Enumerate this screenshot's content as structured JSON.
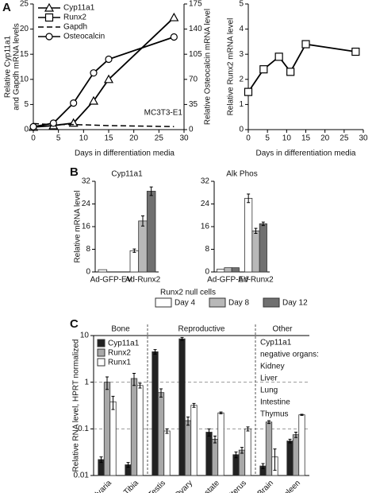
{
  "panels": [
    "A",
    "B",
    "C"
  ],
  "chart_data": [
    {
      "type": "line",
      "xlabel": "Days in differentiation media",
      "ylabel": [
        "Relative Cyp11a1",
        "and Gapdh mRNA levels"
      ],
      "y2label": "Relative Osteocalcin mRNA level",
      "annotation": "MC3T3-E1",
      "xlim": [
        0,
        30
      ],
      "xticks": [
        0,
        5,
        10,
        15,
        20,
        25,
        30
      ],
      "ylim": [
        0,
        25
      ],
      "yticks": [
        0,
        5,
        10,
        15,
        20,
        25
      ],
      "y2lim": [
        0,
        175
      ],
      "y2ticks": [
        0,
        35,
        70,
        105,
        140,
        175
      ],
      "x": [
        0,
        4,
        8,
        12,
        15,
        28
      ],
      "series": [
        {
          "name": "Cyp11a1",
          "marker": "triangle",
          "dashed": false,
          "values": [
            0.5,
            0.8,
            1.3,
            5.7,
            10,
            22.3
          ]
        },
        {
          "name": "Runx2",
          "marker": "square",
          "dashed": false,
          "values": [
            null,
            null,
            null,
            null,
            null,
            null
          ]
        },
        {
          "name": "Gapdh",
          "marker": "none",
          "dashed": true,
          "values": [
            1.2,
            1.0,
            1.0,
            0.9,
            0.8,
            0.6
          ]
        },
        {
          "name": "Osteocalcin",
          "marker": "circle",
          "dashed": false,
          "axis": "y2",
          "values": [
            4,
            9,
            37,
            79,
            98,
            129
          ]
        }
      ]
    },
    {
      "type": "line",
      "xlabel": "Days in differentiation media",
      "ylabel": "Relative Runx2 mRNA level",
      "xlim": [
        0,
        30
      ],
      "xticks": [
        0,
        5,
        10,
        15,
        20,
        25,
        30
      ],
      "ylim": [
        0,
        5
      ],
      "yticks": [
        0,
        1,
        2,
        3,
        4,
        5
      ],
      "x": [
        0,
        4,
        8,
        11,
        15,
        28
      ],
      "series": [
        {
          "marker": "square",
          "dashed": false,
          "values": [
            1.5,
            2.4,
            2.9,
            2.3,
            3.4,
            3.1
          ]
        }
      ]
    },
    {
      "type": "bar",
      "title": "Cyp11a1",
      "ylabel": "Relative mRNA level",
      "legend_title": "Runx2 null cells",
      "categories": [
        "Ad-GFP-EV",
        "Ad-Runx2"
      ],
      "ylim": [
        0,
        32
      ],
      "yticks": [
        0,
        8,
        16,
        24,
        32
      ],
      "series": [
        {
          "name": "Day 4",
          "color": "#ffffff",
          "values": [
            0.8,
            7.5
          ],
          "errors": [
            0,
            0.6
          ]
        },
        {
          "name": "Day 8",
          "color": "#b8b8b8",
          "values": [
            0,
            18
          ],
          "errors": [
            0,
            1.8
          ]
        },
        {
          "name": "Day 12",
          "color": "#707070",
          "values": [
            0,
            28.5
          ],
          "errors": [
            0,
            1.5
          ]
        }
      ]
    },
    {
      "type": "bar",
      "title": "Alk Phos",
      "categories": [
        "Ad-GFP-EV",
        "Ad-Runx2"
      ],
      "ylim": [
        0,
        32
      ],
      "yticks": [
        0,
        8,
        16,
        24,
        32
      ],
      "series": [
        {
          "color": "#ffffff",
          "values": [
            1,
            26
          ],
          "errors": [
            0,
            1.5
          ]
        },
        {
          "color": "#b8b8b8",
          "values": [
            1.5,
            14.5
          ],
          "errors": [
            0,
            0.9
          ]
        },
        {
          "color": "#707070",
          "values": [
            1.5,
            17
          ],
          "errors": [
            0,
            0.6
          ]
        }
      ]
    },
    {
      "type": "bar",
      "log": true,
      "grid": true,
      "ylabel": "Relative RNA level, HPRT normalized",
      "categories": [
        "Calvaria",
        "Tibia",
        "Testis",
        "Ovary",
        "Prostate",
        "Uterus",
        "Brain",
        "Spleen"
      ],
      "groups": [
        {
          "label": "Bone",
          "size": 2
        },
        {
          "label": "Reproductive",
          "size": 4
        },
        {
          "label": "Other",
          "size": 2
        }
      ],
      "note": [
        "Cyp11a1",
        "negative organs:",
        "Kidney",
        "Liver",
        "Lung",
        "Intestine",
        "Thymus"
      ],
      "ylim": [
        0.01,
        10
      ],
      "yticks": [
        0.01,
        0.1,
        1,
        10
      ],
      "series": [
        {
          "name": "Cyp11a1",
          "color": "#222222",
          "values": [
            0.022,
            0.017,
            4.5,
            8.5,
            0.085,
            0.028,
            0.016,
            0.055
          ],
          "errors": [
            0.003,
            0.002,
            0.5,
            0.6,
            0.015,
            0.004,
            0.002,
            0.005
          ]
        },
        {
          "name": "Runx2",
          "color": "#a8a8a8",
          "values": [
            1.0,
            1.2,
            0.6,
            0.15,
            0.06,
            0.035,
            0.14,
            0.075
          ],
          "errors": [
            0.3,
            0.35,
            0.12,
            0.03,
            0.01,
            0.005,
            0.01,
            0.01
          ]
        },
        {
          "name": "Runx1",
          "color": "#ffffff",
          "values": [
            0.38,
            0.85,
            0.09,
            0.32,
            0.22,
            0.1,
            0.025,
            0.2
          ],
          "errors": [
            0.12,
            0.1,
            0.01,
            0.03,
            0.01,
            0.01,
            0.012,
            0.005
          ]
        }
      ]
    }
  ]
}
